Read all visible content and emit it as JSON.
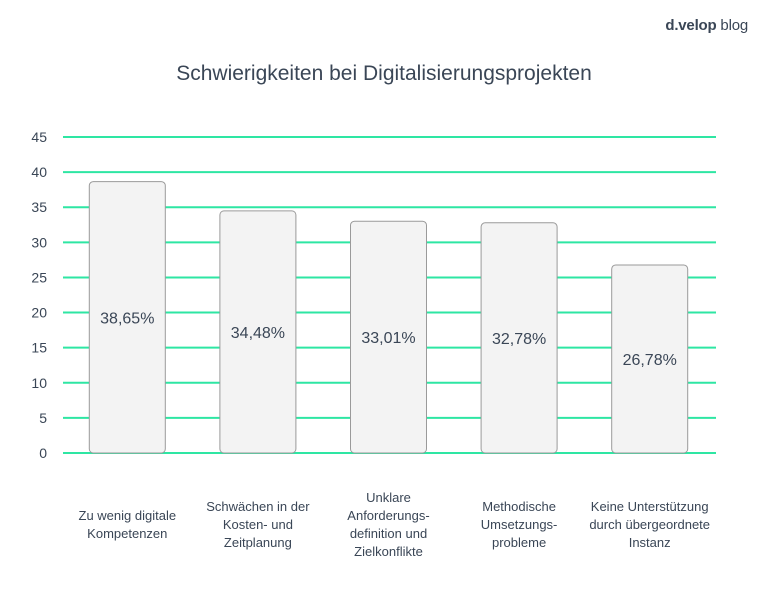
{
  "brand": {
    "name_bold": "d.velop",
    "name_light": " blog"
  },
  "chart_data": {
    "type": "bar",
    "title": "Schwierigkeiten bei Digitalisierungsprojekten",
    "xlabel": "",
    "ylabel": "",
    "ylim": [
      0,
      45
    ],
    "yticks": [
      0,
      5,
      10,
      15,
      20,
      25,
      30,
      35,
      40,
      45
    ],
    "grid": true,
    "categories": [
      [
        "Zu wenig digitale",
        "Kompetenzen"
      ],
      [
        "Schwächen in der",
        "Kosten- und",
        "Zeitplanung"
      ],
      [
        "Unklare",
        "Anforderungs-",
        "definition und",
        "Zielkonflikte"
      ],
      [
        "Methodische",
        "Umsetzungs-",
        "probleme"
      ],
      [
        "Keine Unterstützung",
        "durch übergeordnete",
        "Instanz"
      ]
    ],
    "values": [
      38.65,
      34.48,
      33.01,
      32.78,
      26.78
    ],
    "data_labels": [
      "38,65%",
      "34,48%",
      "33,01%",
      "32,78%",
      "26,78%"
    ],
    "colors": {
      "grid": "#2ee6a3",
      "bar_fill": "#f3f3f3",
      "bar_stroke": "#9a9a9a",
      "text": "#3a4656"
    }
  }
}
